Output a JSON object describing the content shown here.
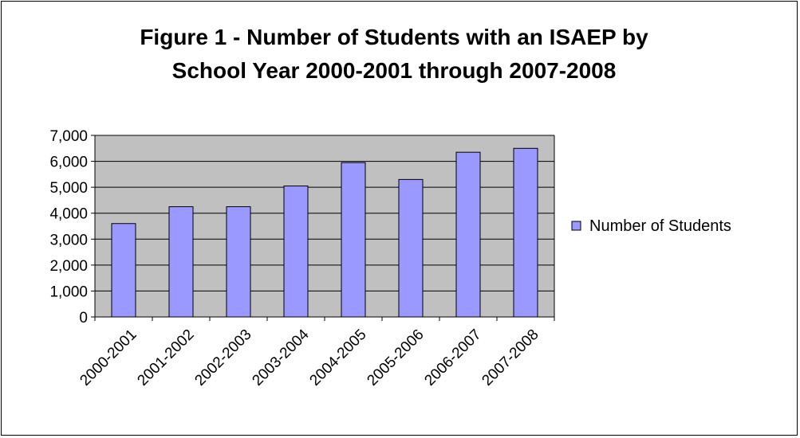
{
  "chart_data": {
    "type": "bar",
    "title_lines": [
      "Figure 1 - Number of Students with an ISAEP by",
      "School Year 2000-2001 through 2007-2008"
    ],
    "categories": [
      "2000-2001",
      "2001-2002",
      "2002-2003",
      "2003-2004",
      "2004-2005",
      "2005-2006",
      "2006-2007",
      "2007-2008"
    ],
    "series": [
      {
        "name": "Number of Students",
        "values": [
          3600,
          4250,
          4250,
          5050,
          5950,
          5300,
          6350,
          6500
        ]
      }
    ],
    "ylim": [
      0,
      7000
    ],
    "yticks": [
      0,
      1000,
      2000,
      3000,
      4000,
      5000,
      6000,
      7000
    ],
    "ytick_labels": [
      "0",
      "1,000",
      "2,000",
      "3,000",
      "4,000",
      "5,000",
      "6,000",
      "7,000"
    ],
    "grid": true,
    "legend_position": "right",
    "colors": {
      "plot_bg": "#c0c0c0",
      "bar_fill": "#9999ff",
      "bar_stroke": "#000000",
      "grid": "#000000"
    }
  }
}
